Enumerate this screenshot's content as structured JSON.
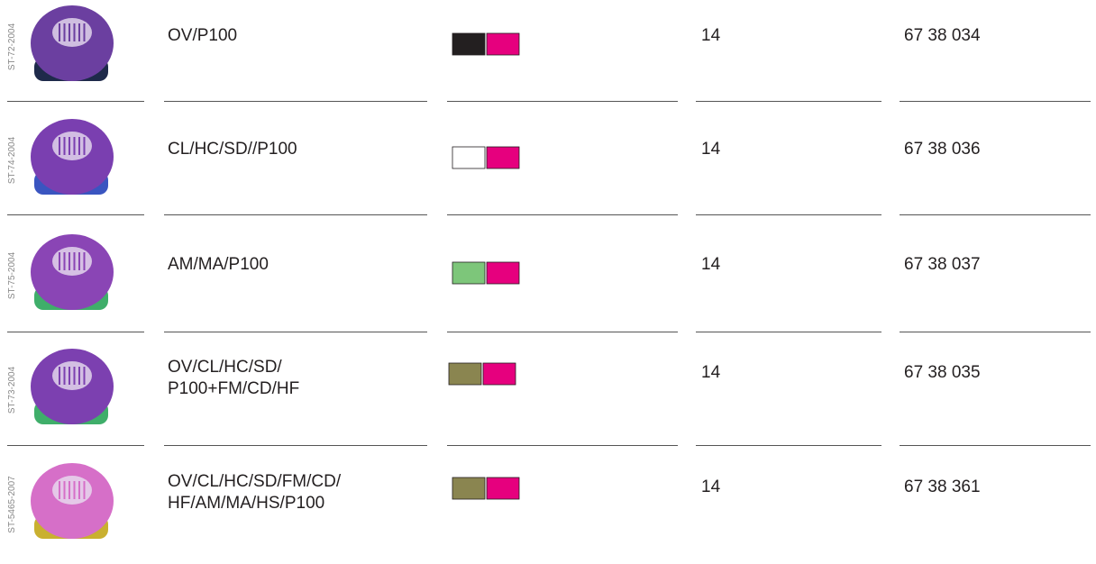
{
  "table": {
    "rows": [
      {
        "code": "ST-72-2004",
        "type": [
          "OV/P100"
        ],
        "swatches": [
          "#231f20",
          "#e6007e"
        ],
        "quantity": "14",
        "article": "67 38 034"
      },
      {
        "code": "ST-74-2004",
        "type": [
          "CL/HC/SD//P100"
        ],
        "swatches": [
          "#ffffff",
          "#e6007e"
        ],
        "quantity": "14",
        "article": "67 38 036"
      },
      {
        "code": "ST-75-2004",
        "type": [
          "AM/MA/P100"
        ],
        "swatches": [
          "#7dc67a",
          "#e6007e"
        ],
        "quantity": "14",
        "article": "67 38 037"
      },
      {
        "code": "ST-73-2004",
        "type": [
          "OV/CL/HC/SD/",
          "P100+FM/CD/HF"
        ],
        "swatches": [
          "#8a8550",
          "#e6007e"
        ],
        "quantity": "14",
        "article": "67 38 035"
      },
      {
        "code": "ST-5465-2007",
        "type": [
          "OV/CL/HC/SD/FM/CD/",
          "HF/AM/MA/HS/P100"
        ],
        "swatches": [
          "#8a8550",
          "#e6007e"
        ],
        "quantity": "14",
        "article": "67 38 361"
      }
    ]
  }
}
